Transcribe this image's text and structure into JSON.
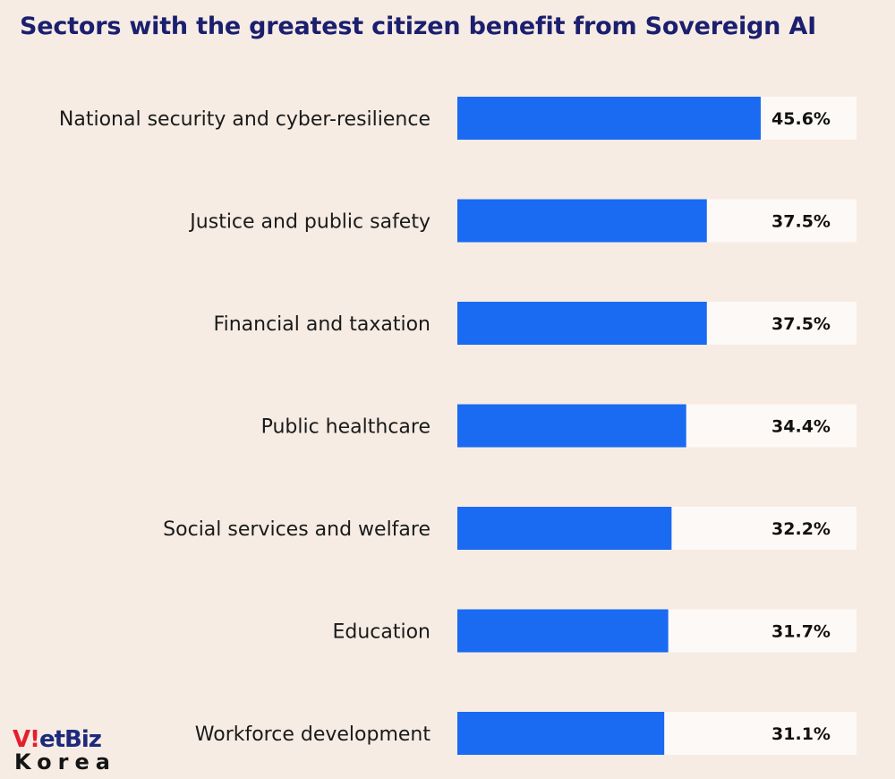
{
  "chart_data": {
    "type": "bar",
    "orientation": "horizontal",
    "title": "Sectors with the greatest citizen benefit from Sovereign AI",
    "categories": [
      "National security and cyber-resilience",
      "Justice and public safety",
      "Financial and taxation",
      "Public healthcare",
      "Social services and welfare",
      "Education",
      "Workforce development"
    ],
    "values": [
      45.6,
      37.5,
      37.5,
      34.4,
      32.2,
      31.7,
      31.1
    ],
    "value_labels": [
      "45.6%",
      "37.5%",
      "37.5%",
      "34.4%",
      "32.2%",
      "31.7%",
      "31.1%"
    ],
    "xlim": [
      0,
      60
    ],
    "grid": false,
    "legend": "none",
    "colors": {
      "bar": "#1a6af2",
      "track": "#fdf9f6",
      "background": "#f6ece4",
      "title": "#1b1f6e"
    }
  },
  "logo": {
    "line1": "VietBiz",
    "line2": "Korea"
  }
}
